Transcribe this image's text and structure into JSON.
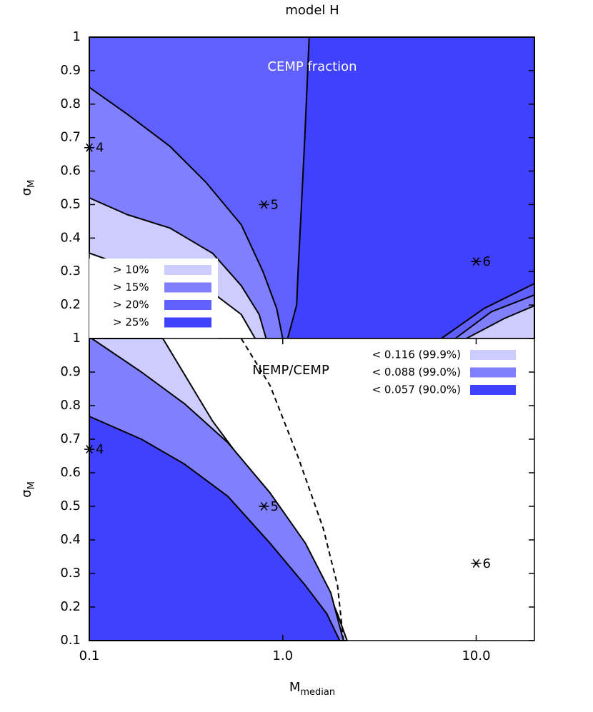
{
  "chart_data": [
    {
      "type": "contour",
      "title": "model H",
      "annotation": "CEMP fraction",
      "ylabel": {
        "text": "σ",
        "subscript": "M"
      },
      "log_x": true,
      "xlim": [
        0.1,
        20
      ],
      "ylim": [
        0.1,
        1
      ],
      "yticks": [
        0.2,
        0.3,
        0.4,
        0.5,
        0.6,
        0.7,
        0.8,
        0.9,
        1
      ],
      "legend": "lower left",
      "regions": [
        {
          "name": "> 10%",
          "color": "#ccccff",
          "x": [
            0.1,
            0.186,
            0.435,
            0.61,
            0.72,
            20,
            20,
            0.1
          ],
          "y": [
            0.355,
            0.3,
            0.236,
            0.172,
            0.1,
            0.1,
            1,
            1
          ]
        },
        {
          "name": "> 15%",
          "color": "#8080ff",
          "x": [
            0.1,
            0.157,
            0.261,
            0.435,
            0.61,
            0.755,
            0.82,
            8.9,
            14,
            20,
            20,
            0.1
          ],
          "y": [
            0.52,
            0.47,
            0.43,
            0.354,
            0.258,
            0.172,
            0.1,
            0.1,
            0.16,
            0.198,
            1,
            1
          ]
        },
        {
          "name": "> 20%",
          "color": "#6060ff",
          "x": [
            0.1,
            0.157,
            0.261,
            0.4,
            0.61,
            0.79,
            0.93,
            1.0,
            7.8,
            12,
            20,
            20,
            0.1
          ],
          "y": [
            0.85,
            0.77,
            0.674,
            0.567,
            0.44,
            0.3,
            0.19,
            0.1,
            0.1,
            0.18,
            0.23,
            1,
            1
          ]
        },
        {
          "name": "> 25%",
          "color": "#4040ff",
          "x": [
            1.37,
            1.3,
            1.25,
            1.2,
            1.18,
            1.06,
            6.6,
            11,
            20,
            20
          ],
          "y": [
            1,
            0.7,
            0.5,
            0.3,
            0.2,
            0.1,
            0.1,
            0.19,
            0.264,
            1
          ]
        }
      ],
      "points": {
        "x": [
          0.1,
          0.8,
          10
        ],
        "y": [
          0.67,
          0.5,
          0.33
        ],
        "labels": [
          "4",
          "5",
          "6"
        ]
      }
    },
    {
      "type": "contour",
      "annotation": "NEMP/CEMP",
      "xlabel": {
        "text": "M",
        "subscript": "median"
      },
      "ylabel": {
        "text": "σ",
        "subscript": "M"
      },
      "log_x": true,
      "xlim": [
        0.1,
        20
      ],
      "ylim": [
        0.1,
        1
      ],
      "xticks": [
        0.1,
        {
          "value": 1,
          "label": "1.0"
        },
        {
          "value": 10,
          "label": "10.0"
        }
      ],
      "yticks": [
        0.1,
        0.2,
        0.3,
        0.4,
        0.5,
        0.6,
        0.7,
        0.8,
        0.9,
        1
      ],
      "legend": "upper right",
      "regions": [
        {
          "name": "< 0.116 (99.9%)",
          "color": "#ccccff",
          "x": [
            0.1,
            0.1,
            0.24,
            0.435,
            0.72,
            1.1,
            1.55,
            1.92,
            2.15
          ],
          "y": [
            0.1,
            1,
            1,
            0.753,
            0.583,
            0.434,
            0.306,
            0.179,
            0.1
          ]
        },
        {
          "name": "< 0.088 (99.0%)",
          "color": "#8080ff",
          "x": [
            0.1,
            0.1,
            0.103,
            0.186,
            0.31,
            0.52,
            0.86,
            1.31,
            1.77,
            2.06
          ],
          "y": [
            0.1,
            1,
            1,
            0.9,
            0.806,
            0.69,
            0.54,
            0.39,
            0.243,
            0.1
          ]
        },
        {
          "name": "< 0.057 (90.0%)",
          "color": "#4040ff",
          "x": [
            0.1,
            0.1,
            0.186,
            0.31,
            0.52,
            0.86,
            1.31,
            1.69,
            1.97
          ],
          "y": [
            0.1,
            0.768,
            0.7,
            0.626,
            0.53,
            0.39,
            0.264,
            0.18,
            0.1
          ]
        }
      ],
      "lines": [
        {
          "style": "dashed",
          "x": [
            0.61,
            0.86,
            1.2,
            1.62,
            1.92,
            2.06
          ],
          "y": [
            1,
            0.86,
            0.647,
            0.434,
            0.264,
            0.1
          ]
        }
      ],
      "points": {
        "x": [
          0.1,
          0.8,
          10
        ],
        "y": [
          0.67,
          0.5,
          0.33
        ],
        "labels": [
          "4",
          "5",
          "6"
        ]
      }
    }
  ]
}
